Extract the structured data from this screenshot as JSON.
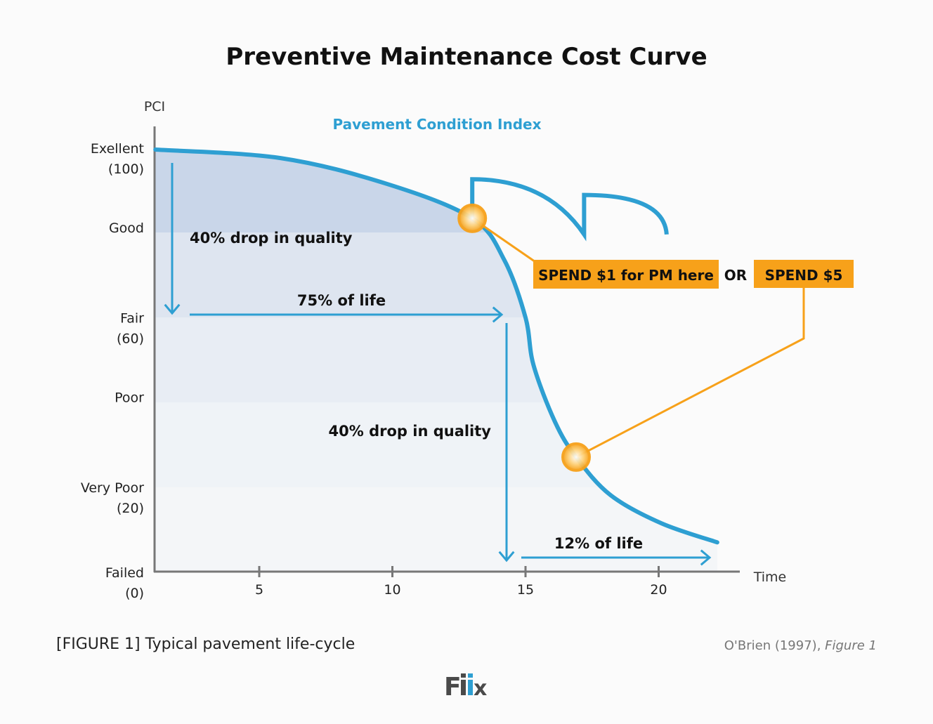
{
  "chart_data": {
    "type": "line",
    "title": "Preventive Maintenance Cost Curve",
    "series_label": "Pavement Condition Index",
    "ylabel": "PCI",
    "xlabel": "Time",
    "xlim": [
      0,
      22
    ],
    "ylim": [
      0,
      100
    ],
    "x_ticks": [
      5,
      10,
      15,
      20
    ],
    "y_ticks": [
      {
        "value": 100,
        "label": "Exellent",
        "sub": "(100)"
      },
      {
        "value": 80,
        "label": "Good",
        "sub": ""
      },
      {
        "value": 60,
        "label": "Fair",
        "sub": "(60)"
      },
      {
        "value": 40,
        "label": "Poor",
        "sub": ""
      },
      {
        "value": 20,
        "label": "Very Poor",
        "sub": "(20)"
      },
      {
        "value": 0,
        "label": "Failed",
        "sub": "(0)"
      }
    ],
    "series": [
      {
        "x": [
          1.1,
          5.8,
          9.8,
          13,
          14.2,
          15,
          15.3,
          16.1,
          16.9,
          18.2,
          20.1,
          22.2
        ],
        "y": [
          99.5,
          97.5,
          91.4,
          83.3,
          73.5,
          59.9,
          48.7,
          35.4,
          27,
          18,
          11.4,
          6.9
        ]
      }
    ],
    "treatment_curve": {
      "x": [
        13,
        13,
        15,
        17.2,
        17.2,
        19,
        20.3
      ],
      "y": [
        83.3,
        92.5,
        88,
        79.5,
        88.8,
        86,
        79.5
      ]
    },
    "annotations": {
      "drop1": "40% drop in quality",
      "life1": "75% of life",
      "drop2": "40% drop in quality",
      "life2": "12% of life",
      "spend1": "SPEND $1 for PM here",
      "or": "OR",
      "spend2": "SPEND $5"
    },
    "pm_point": {
      "x": 13,
      "y": 83.3
    },
    "late_point": {
      "x": 16.9,
      "y": 27
    },
    "colors": {
      "curve": "#2e9fd2",
      "accent": "#f7a11a",
      "band": "#c6d4e8"
    }
  },
  "caption": "[FIGURE 1] Typical pavement life-cycle",
  "source": "O'Brien (1997),",
  "source_italic": "Figure 1",
  "logo": "fiix"
}
